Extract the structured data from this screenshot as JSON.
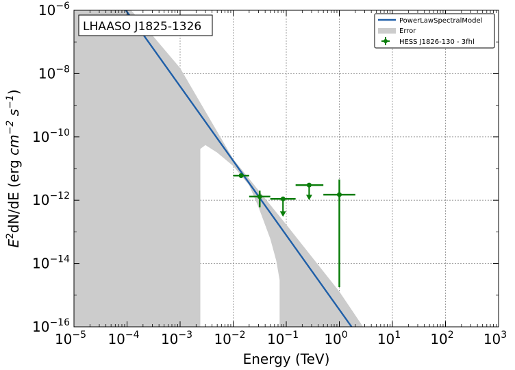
{
  "chart_data": {
    "type": "line",
    "title": "",
    "annotation": "LHAASO J1825-1326",
    "xlabel": "Energy (TeV)",
    "ylabel_parts": {
      "e": "E",
      "e_sup": "2",
      "mid": "dN/dE (erg ",
      "cm": "cm",
      "cm_sup": "−2",
      "s": " s",
      "s_sup": "−1",
      "end": ")"
    },
    "xscale": "log",
    "yscale": "log",
    "xlim": [
      1e-05,
      1000
    ],
    "ylim": [
      1e-16,
      1e-06
    ],
    "xticks": [
      {
        "exp": -5,
        "label_base": "10",
        "label_exp": "−5"
      },
      {
        "exp": -4,
        "label_base": "10",
        "label_exp": "−4"
      },
      {
        "exp": -3,
        "label_base": "10",
        "label_exp": "−3"
      },
      {
        "exp": -2,
        "label_base": "10",
        "label_exp": "−2"
      },
      {
        "exp": -1,
        "label_base": "10",
        "label_exp": "−1"
      },
      {
        "exp": 0,
        "label_base": "10",
        "label_exp": "0"
      },
      {
        "exp": 1,
        "label_base": "10",
        "label_exp": "1"
      },
      {
        "exp": 2,
        "label_base": "10",
        "label_exp": "2"
      },
      {
        "exp": 3,
        "label_base": "10",
        "label_exp": "3"
      }
    ],
    "yticks": [
      {
        "exp": -16,
        "label_base": "10",
        "label_exp": "−16"
      },
      {
        "exp": -14,
        "label_base": "10",
        "label_exp": "−14"
      },
      {
        "exp": -12,
        "label_base": "10",
        "label_exp": "−12"
      },
      {
        "exp": -10,
        "label_base": "10",
        "label_exp": "−10"
      },
      {
        "exp": -8,
        "label_base": "10",
        "label_exp": "−8"
      },
      {
        "exp": -6,
        "label_base": "10",
        "label_exp": "−6"
      }
    ],
    "grid": true,
    "legend_position": "top-right",
    "legend": [
      {
        "label": "PowerLawSpectralModel",
        "kind": "line",
        "color": "#1f5fa8"
      },
      {
        "label": "Error",
        "kind": "band",
        "color": "#cccccc"
      },
      {
        "label": "HESS J1826-130 - 3fhl",
        "kind": "errorbar",
        "color": "#0a7d0a"
      }
    ],
    "model_line": {
      "color": "#1f5fa8",
      "points": [
        [
          9.5e-05,
          1e-06
        ],
        [
          1.7,
          1e-16
        ]
      ]
    },
    "error_band": {
      "color": "#cccccc",
      "lower": [
        [
          1e-05,
          1e-16
        ],
        [
          0.0024,
          1e-16
        ],
        [
          0.0024,
          4.2e-11
        ],
        [
          0.003,
          5.5e-11
        ],
        [
          0.005,
          3.2e-11
        ],
        [
          0.01,
          1.2e-11
        ],
        [
          0.02,
          3e-12
        ],
        [
          0.03,
          6e-13
        ],
        [
          0.05,
          6e-14
        ],
        [
          0.065,
          1.2e-14
        ],
        [
          0.075,
          3e-15
        ],
        [
          0.075,
          1e-16
        ]
      ],
      "upper": [
        [
          1e-05,
          1e-06
        ],
        [
          0.00012,
          1e-06
        ],
        [
          0.001,
          1.5e-08
        ],
        [
          0.01,
          2e-11
        ],
        [
          0.1,
          1.7e-13
        ],
        [
          1,
          1.3e-15
        ],
        [
          2.8,
          1e-16
        ]
      ]
    },
    "points": {
      "name": "HESS J1826-130 - 3fhl",
      "color": "#0a7d0a",
      "data": [
        {
          "x": 0.0141,
          "xlo": 0.01,
          "xhi": 0.02,
          "y": 6e-12,
          "ylo": 5e-12,
          "yhi": 7e-12,
          "ul": false
        },
        {
          "x": 0.0316,
          "xlo": 0.02,
          "xhi": 0.05,
          "y": 1.3e-12,
          "ylo": 6e-13,
          "yhi": 2e-12,
          "ul": false
        },
        {
          "x": 0.0868,
          "xlo": 0.05,
          "xhi": 0.15,
          "y": 1.1e-12,
          "ylo": 3e-13,
          "yhi": null,
          "ul": true
        },
        {
          "x": 0.27,
          "xlo": 0.15,
          "xhi": 0.5,
          "y": 3e-12,
          "ylo": 1e-12,
          "yhi": null,
          "ul": true
        },
        {
          "x": 1.0,
          "xlo": 0.5,
          "xhi": 2.0,
          "y": 1.5e-12,
          "ylo": 1.8e-15,
          "yhi": 4.5e-12,
          "ul": false
        }
      ]
    }
  }
}
